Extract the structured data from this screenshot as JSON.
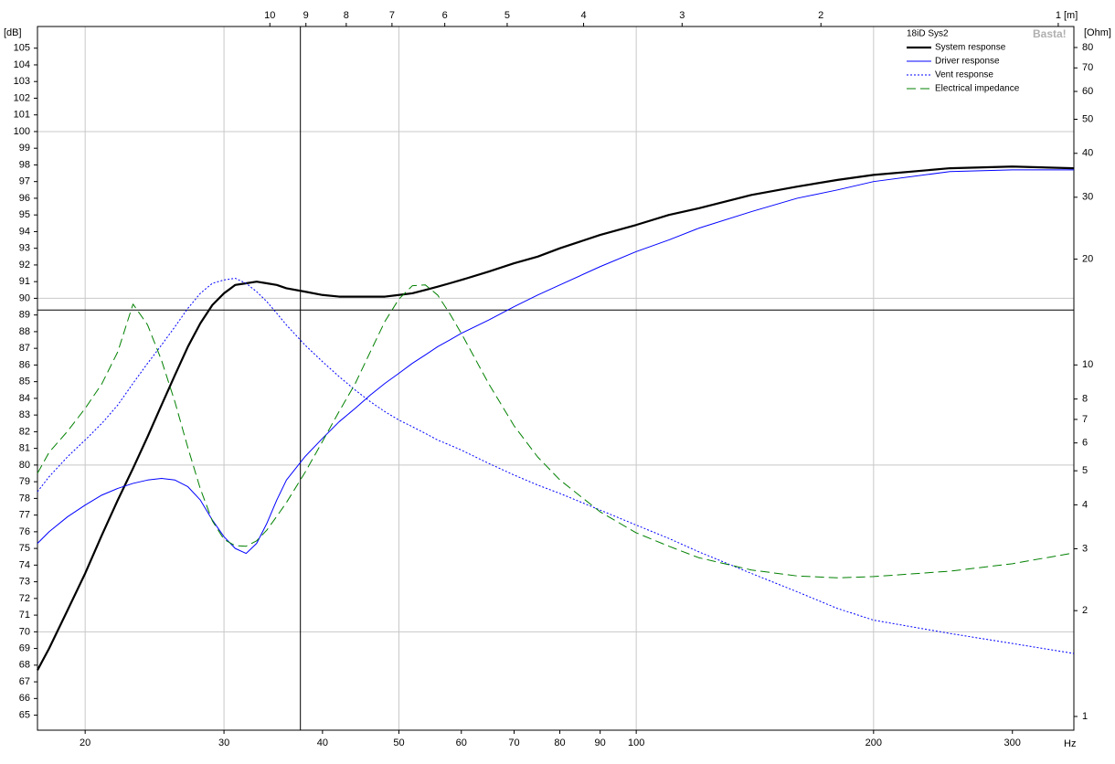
{
  "chart_data": {
    "type": "line",
    "title": "18iD Sys2",
    "watermark": "Basta!",
    "x_unit": "Hz",
    "y_unit": "[dB]",
    "y2_unit": "[Ohm]",
    "x2_unit": "[m]",
    "log_x": true,
    "log_y2": true,
    "legend": "top-right",
    "xlim": [
      17.4,
      359
    ],
    "ylim": [
      64.1,
      106.3
    ],
    "y2lim": [
      0.914,
      91.8
    ],
    "xticks": [
      20,
      30,
      40,
      50,
      60,
      70,
      80,
      90,
      100,
      200,
      300
    ],
    "yticks": [
      65,
      66,
      67,
      68,
      69,
      70,
      71,
      72,
      73,
      74,
      75,
      76,
      77,
      78,
      79,
      80,
      81,
      82,
      83,
      84,
      85,
      86,
      87,
      88,
      89,
      90,
      91,
      92,
      93,
      94,
      95,
      96,
      97,
      98,
      99,
      100,
      101,
      102,
      103,
      104,
      105
    ],
    "y2ticks": [
      1,
      2,
      3,
      4,
      5,
      6,
      7,
      8,
      10,
      20,
      30,
      40,
      50,
      60,
      70,
      80
    ],
    "x2ticks": [
      10,
      9,
      8,
      7,
      6,
      5,
      4,
      3,
      2,
      1
    ],
    "xgrid": [
      20,
      30,
      50,
      100,
      200
    ],
    "ygrid": [
      70,
      80,
      90,
      100
    ],
    "cursor": {
      "x": 37.5,
      "y": 89.3
    },
    "x": [
      17.4,
      18,
      19,
      20,
      21,
      22,
      23,
      24,
      25,
      26,
      27,
      28,
      29,
      30,
      31,
      32,
      33,
      34,
      35,
      36,
      38,
      40,
      42,
      44,
      46,
      48,
      50,
      52,
      54,
      56,
      58,
      60,
      65,
      70,
      75,
      80,
      90,
      100,
      110,
      120,
      140,
      160,
      180,
      200,
      250,
      300,
      359
    ],
    "series": [
      {
        "name": "System response",
        "color": "#000000",
        "style": "bold",
        "values": [
          67.7,
          69.0,
          71.3,
          73.5,
          75.8,
          77.9,
          79.8,
          81.7,
          83.6,
          85.4,
          87.1,
          88.5,
          89.6,
          90.3,
          90.8,
          90.9,
          91.0,
          90.9,
          90.8,
          90.6,
          90.4,
          90.2,
          90.1,
          90.1,
          90.1,
          90.1,
          90.2,
          90.3,
          90.5,
          90.7,
          90.9,
          91.1,
          91.6,
          92.1,
          92.5,
          93.0,
          93.8,
          94.4,
          95.0,
          95.4,
          96.2,
          96.7,
          97.1,
          97.4,
          97.8,
          97.9,
          97.8
        ]
      },
      {
        "name": "Driver response",
        "color": "#0000ff",
        "style": "solid",
        "values": [
          75.3,
          76.0,
          76.9,
          77.6,
          78.2,
          78.6,
          78.9,
          79.1,
          79.2,
          79.1,
          78.7,
          77.9,
          76.7,
          75.7,
          75.0,
          74.7,
          75.3,
          76.5,
          77.9,
          79.1,
          80.5,
          81.6,
          82.6,
          83.4,
          84.2,
          84.9,
          85.5,
          86.1,
          86.6,
          87.1,
          87.5,
          87.9,
          88.7,
          89.5,
          90.2,
          90.8,
          91.9,
          92.8,
          93.5,
          94.2,
          95.2,
          96.0,
          96.5,
          97.0,
          97.6,
          97.7,
          97.7
        ]
      },
      {
        "name": "Vent response",
        "color": "#0000ff",
        "style": "dotted",
        "values": [
          78.4,
          79.3,
          80.5,
          81.5,
          82.5,
          83.6,
          84.9,
          86.1,
          87.2,
          88.3,
          89.4,
          90.3,
          90.9,
          91.1,
          91.2,
          90.9,
          90.4,
          89.8,
          89.1,
          88.4,
          87.2,
          86.2,
          85.3,
          84.5,
          83.8,
          83.2,
          82.7,
          82.3,
          81.9,
          81.5,
          81.2,
          80.9,
          80.1,
          79.4,
          78.8,
          78.3,
          77.3,
          76.4,
          75.6,
          74.8,
          73.5,
          72.4,
          71.4,
          70.7,
          69.9,
          69.3,
          68.7
        ]
      },
      {
        "name": "Electrical impedance",
        "color": "#008000",
        "style": "dashed",
        "axis": "y2",
        "values": [
          4.92,
          5.64,
          6.48,
          7.52,
          8.84,
          10.9,
          14.9,
          13.0,
          10.3,
          7.84,
          5.81,
          4.44,
          3.6,
          3.19,
          3.06,
          3.05,
          3.16,
          3.39,
          3.71,
          4.06,
          4.94,
          6.06,
          7.38,
          8.84,
          10.9,
          13.3,
          15.4,
          16.8,
          16.9,
          15.8,
          14.0,
          12.3,
          8.84,
          6.71,
          5.47,
          4.71,
          3.82,
          3.33,
          3.05,
          2.83,
          2.61,
          2.51,
          2.48,
          2.5,
          2.59,
          2.72,
          2.92
        ]
      }
    ]
  }
}
